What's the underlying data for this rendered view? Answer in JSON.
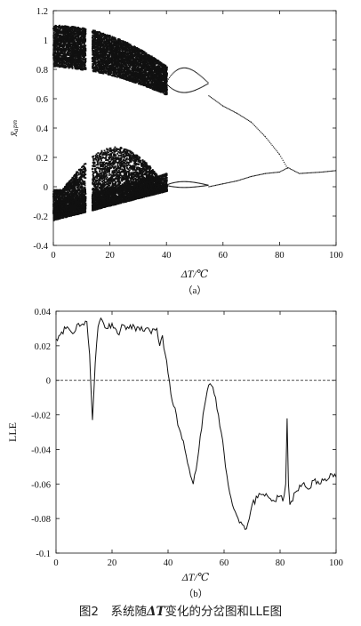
{
  "chart_data": [
    {
      "type": "scatter",
      "panel_label": "（a）",
      "xlabel": "ΔT/℃",
      "ylabel": "x̄ₐₚₙ",
      "xlim": [
        0,
        100
      ],
      "ylim": [
        -0.4,
        1.2
      ],
      "xticks": [
        0,
        20,
        40,
        60,
        80,
        100
      ],
      "yticks": [
        -0.4,
        -0.2,
        0,
        0.2,
        0.4,
        0.6,
        0.8,
        1,
        1.2
      ],
      "description_series": [
        {
          "name": "upper chaotic band",
          "x_range": [
            0,
            40
          ],
          "y_range_at_start": [
            0.82,
            1.1
          ],
          "y_range_at_end": [
            0.62,
            0.82
          ]
        },
        {
          "name": "lower chaotic band",
          "x_range": [
            0,
            40
          ],
          "y_range_at_start": [
            -0.23,
            -0.02
          ],
          "y_range_at_max": [
            -0.1,
            0.27
          ],
          "y_range_at_end": [
            -0.03,
            0.06
          ]
        },
        {
          "name": "period-2 loops",
          "x": [
            40,
            46,
            50,
            55
          ],
          "upper_loop_y": [
            [
              0.72,
              0.69
            ],
            [
              0.8,
              0.63
            ],
            [
              0.77,
              0.63
            ],
            [
              0.64,
              0.64
            ]
          ],
          "lower_loop_y": [
            [
              0.04,
              -0.01
            ],
            [
              0.02,
              -0.02
            ],
            [
              0.01,
              -0.02
            ],
            [
              0.0,
              0.0
            ]
          ]
        },
        {
          "name": "upper branch",
          "x": [
            55,
            60,
            65,
            70,
            75,
            80,
            83
          ],
          "y": [
            0.62,
            0.55,
            0.5,
            0.44,
            0.34,
            0.22,
            0.12
          ]
        },
        {
          "name": "lower branch",
          "x": [
            55,
            60,
            65,
            70,
            75,
            80,
            83,
            87,
            95,
            100
          ],
          "y": [
            0.0,
            0.02,
            0.04,
            0.07,
            0.09,
            0.1,
            0.13,
            0.09,
            0.1,
            0.11
          ]
        }
      ],
      "window_gap_x": [
        11.5,
        13.5
      ]
    },
    {
      "type": "line",
      "panel_label": "（b）",
      "xlabel": "ΔT/℃",
      "ylabel": "LLE",
      "xlim": [
        0,
        100
      ],
      "ylim": [
        -0.1,
        0.04
      ],
      "xticks": [
        0,
        20,
        40,
        60,
        80,
        100
      ],
      "yticks": [
        -0.1,
        -0.08,
        -0.06,
        -0.04,
        -0.02,
        0,
        0.02,
        0.04
      ],
      "zero_line": true,
      "x": [
        0,
        2,
        4,
        6,
        8,
        10,
        11,
        12,
        13,
        14,
        15,
        16,
        18,
        20,
        22,
        24,
        26,
        28,
        30,
        32,
        34,
        36,
        37,
        38,
        39,
        40,
        41,
        42,
        43,
        44,
        45,
        46,
        47,
        48,
        49,
        50,
        51,
        52,
        53,
        54,
        55,
        56,
        57,
        58,
        59,
        60,
        61,
        62,
        63,
        64,
        65,
        66,
        67,
        68,
        69,
        70,
        72,
        74,
        76,
        78,
        80,
        81,
        82,
        82.5,
        83,
        83.5,
        84,
        86,
        88,
        90,
        92,
        94,
        96,
        98,
        100
      ],
      "y": [
        0.024,
        0.028,
        0.031,
        0.027,
        0.033,
        0.032,
        0.034,
        0.015,
        -0.023,
        0.01,
        0.031,
        0.036,
        0.03,
        0.033,
        0.027,
        0.032,
        0.03,
        0.031,
        0.029,
        0.03,
        0.027,
        0.03,
        0.02,
        0.026,
        0.015,
        0.004,
        -0.008,
        -0.015,
        -0.02,
        -0.028,
        -0.034,
        -0.04,
        -0.048,
        -0.055,
        -0.06,
        -0.052,
        -0.04,
        -0.028,
        -0.015,
        -0.006,
        -0.002,
        -0.004,
        -0.01,
        -0.02,
        -0.03,
        -0.042,
        -0.055,
        -0.065,
        -0.072,
        -0.076,
        -0.08,
        -0.082,
        -0.084,
        -0.086,
        -0.08,
        -0.072,
        -0.068,
        -0.066,
        -0.068,
        -0.07,
        -0.067,
        -0.07,
        -0.06,
        -0.022,
        -0.06,
        -0.072,
        -0.07,
        -0.064,
        -0.06,
        -0.063,
        -0.058,
        -0.06,
        -0.057,
        -0.054,
        -0.056
      ]
    }
  ],
  "figure_caption": "图2 系统随ΔT变化的分岔图和LLE图",
  "caption": {
    "prefix": "图2",
    "before": "系统随",
    "bold": "ΔT",
    "after": "变化的分岔图和LLE图"
  }
}
